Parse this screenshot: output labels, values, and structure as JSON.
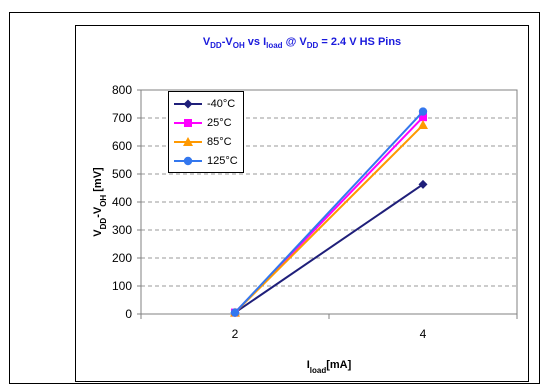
{
  "chart_data": {
    "type": "line",
    "title_parts": {
      "a": "V",
      "a_sub": "DD",
      "b": "-V",
      "b_sub": "OH",
      "c": " vs I",
      "c_sub": "load",
      "d": " @ V",
      "d_sub": "DD",
      "e": " = 2.4 V HS Pins"
    },
    "ylabel_parts": {
      "a": "V",
      "a_sub": "DD",
      "b": "-V",
      "b_sub": "OH",
      "c": " [mV]"
    },
    "xlabel_parts": {
      "a": "I",
      "a_sub": "load",
      "b": "[mA]"
    },
    "x": [
      2,
      4
    ],
    "xticks": [
      "2",
      "4"
    ],
    "xlim": [
      1,
      5
    ],
    "ylim": [
      0,
      800
    ],
    "yticks": [
      "0",
      "100",
      "200",
      "300",
      "400",
      "500",
      "600",
      "700",
      "800"
    ],
    "grid": "horizontal dashed",
    "legend_position": "top-left",
    "series": [
      {
        "name": "-40°C",
        "values": [
          5,
          463
        ],
        "color": "#1f1f7a",
        "marker": "diamond"
      },
      {
        "name": "25°C",
        "values": [
          5,
          703
        ],
        "color": "#ff00ff",
        "marker": "square"
      },
      {
        "name": "85°C",
        "values": [
          5,
          675
        ],
        "color": "#ff9900",
        "marker": "triangle"
      },
      {
        "name": "125°C",
        "values": [
          5,
          723
        ],
        "color": "#3377ee",
        "marker": "circle"
      }
    ]
  }
}
